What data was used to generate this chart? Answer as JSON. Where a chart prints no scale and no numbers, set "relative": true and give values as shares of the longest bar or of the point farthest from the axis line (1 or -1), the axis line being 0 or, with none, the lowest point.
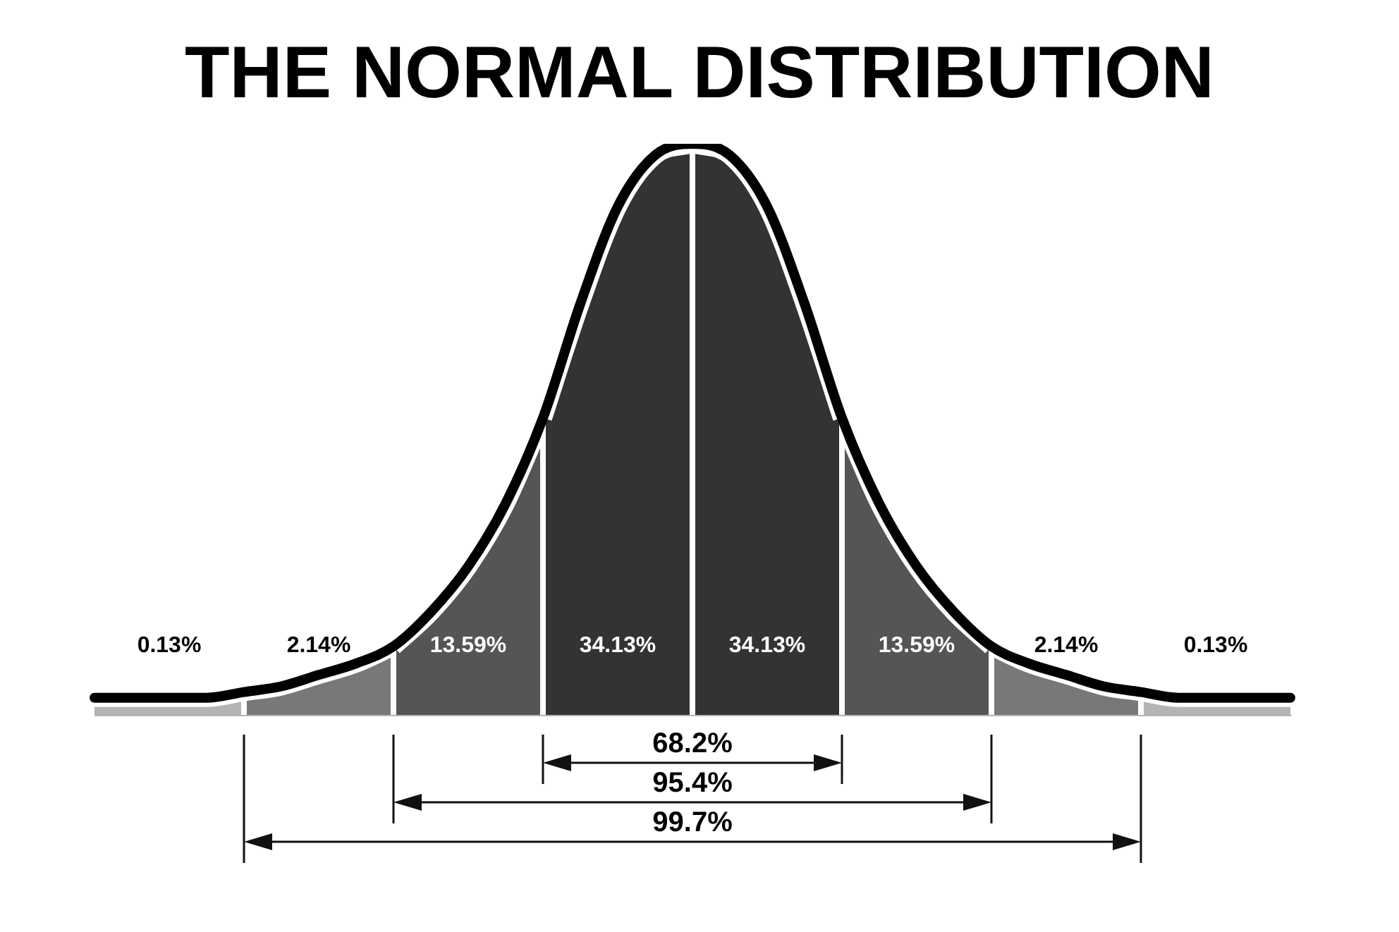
{
  "chart_data": {
    "type": "area",
    "title": "THE NORMAL DISTRIBUTION",
    "relative": true,
    "tick_labels": false,
    "categories": [
      null,
      null,
      null,
      null,
      null,
      null,
      null,
      null,
      null,
      null,
      null,
      null,
      null,
      null,
      null,
      null,
      null,
      null,
      null,
      null,
      null,
      null,
      null,
      null,
      null,
      null,
      null,
      null,
      null,
      null,
      null,
      null,
      null
    ],
    "series": [
      {
        "color": "#b4b4b4",
        "values": [
          0.03,
          0.03,
          0.03,
          0.03,
          0.04,
          null,
          null,
          null,
          null,
          null,
          null,
          null,
          null,
          null,
          null,
          null,
          null,
          null,
          null,
          null,
          null,
          null,
          null,
          null,
          null,
          null,
          null,
          null,
          null,
          null,
          null,
          null,
          null
        ]
      },
      {
        "color": "#787878",
        "values": [
          null,
          null,
          null,
          null,
          0.04,
          0.05,
          0.07,
          0.09,
          0.12,
          null,
          null,
          null,
          null,
          null,
          null,
          null,
          null,
          null,
          null,
          null,
          null,
          null,
          null,
          null,
          null,
          null,
          null,
          null,
          null,
          null,
          null,
          null,
          null
        ]
      },
      {
        "color": "#555555",
        "values": [
          null,
          null,
          null,
          null,
          null,
          null,
          null,
          null,
          0.12,
          0.18,
          0.26,
          0.37,
          0.52,
          null,
          null,
          null,
          null,
          null,
          null,
          null,
          null,
          null,
          null,
          null,
          null,
          null,
          null,
          null,
          null,
          null,
          null,
          null,
          null
        ]
      },
      {
        "color": "#333333",
        "values": [
          null,
          null,
          null,
          null,
          null,
          null,
          null,
          null,
          null,
          null,
          null,
          null,
          0.52,
          0.72,
          0.89,
          0.98,
          1,
          null,
          null,
          null,
          null,
          null,
          null,
          null,
          null,
          null,
          null,
          null,
          null,
          null,
          null,
          null,
          null
        ]
      },
      {
        "color": "#333333",
        "values": [
          null,
          null,
          null,
          null,
          null,
          null,
          null,
          null,
          null,
          null,
          null,
          null,
          null,
          null,
          null,
          null,
          1,
          0.98,
          0.89,
          0.72,
          0.52,
          null,
          null,
          null,
          null,
          null,
          null,
          null,
          null,
          null,
          null,
          null,
          null
        ]
      },
      {
        "color": "#555555",
        "values": [
          null,
          null,
          null,
          null,
          null,
          null,
          null,
          null,
          null,
          null,
          null,
          null,
          null,
          null,
          null,
          null,
          null,
          null,
          null,
          null,
          0.52,
          0.37,
          0.26,
          0.18,
          0.12,
          null,
          null,
          null,
          null,
          null,
          null,
          null,
          null
        ]
      },
      {
        "color": "#787878",
        "values": [
          null,
          null,
          null,
          null,
          null,
          null,
          null,
          null,
          null,
          null,
          null,
          null,
          null,
          null,
          null,
          null,
          null,
          null,
          null,
          null,
          null,
          null,
          null,
          null,
          0.12,
          0.09,
          0.07,
          0.05,
          0.04,
          null,
          null,
          null,
          null
        ]
      },
      {
        "color": "#b4b4b4",
        "values": [
          null,
          null,
          null,
          null,
          null,
          null,
          null,
          null,
          null,
          null,
          null,
          null,
          null,
          null,
          null,
          null,
          null,
          null,
          null,
          null,
          null,
          null,
          null,
          null,
          null,
          null,
          null,
          null,
          0.04,
          0.03,
          0.03,
          0.03,
          0.03
        ]
      },
      {
        "type": "line",
        "color": "#000000",
        "values": [
          0.03,
          0.03,
          0.03,
          0.03,
          0.04,
          0.05,
          0.07,
          0.09,
          0.12,
          0.18,
          0.26,
          0.37,
          0.52,
          0.72,
          0.89,
          0.98,
          1,
          0.98,
          0.89,
          0.72,
          0.52,
          0.37,
          0.26,
          0.18,
          0.12,
          0.09,
          0.07,
          0.05,
          0.04,
          0.03,
          0.03,
          0.03,
          0.03
        ]
      }
    ],
    "annotations": [
      "0.13%",
      "2.14%",
      "13.59%",
      "34.13%",
      "34.13%",
      "13.59%",
      "2.14%",
      "0.13%",
      "68.2%",
      "95.4%",
      "99.7%"
    ]
  }
}
